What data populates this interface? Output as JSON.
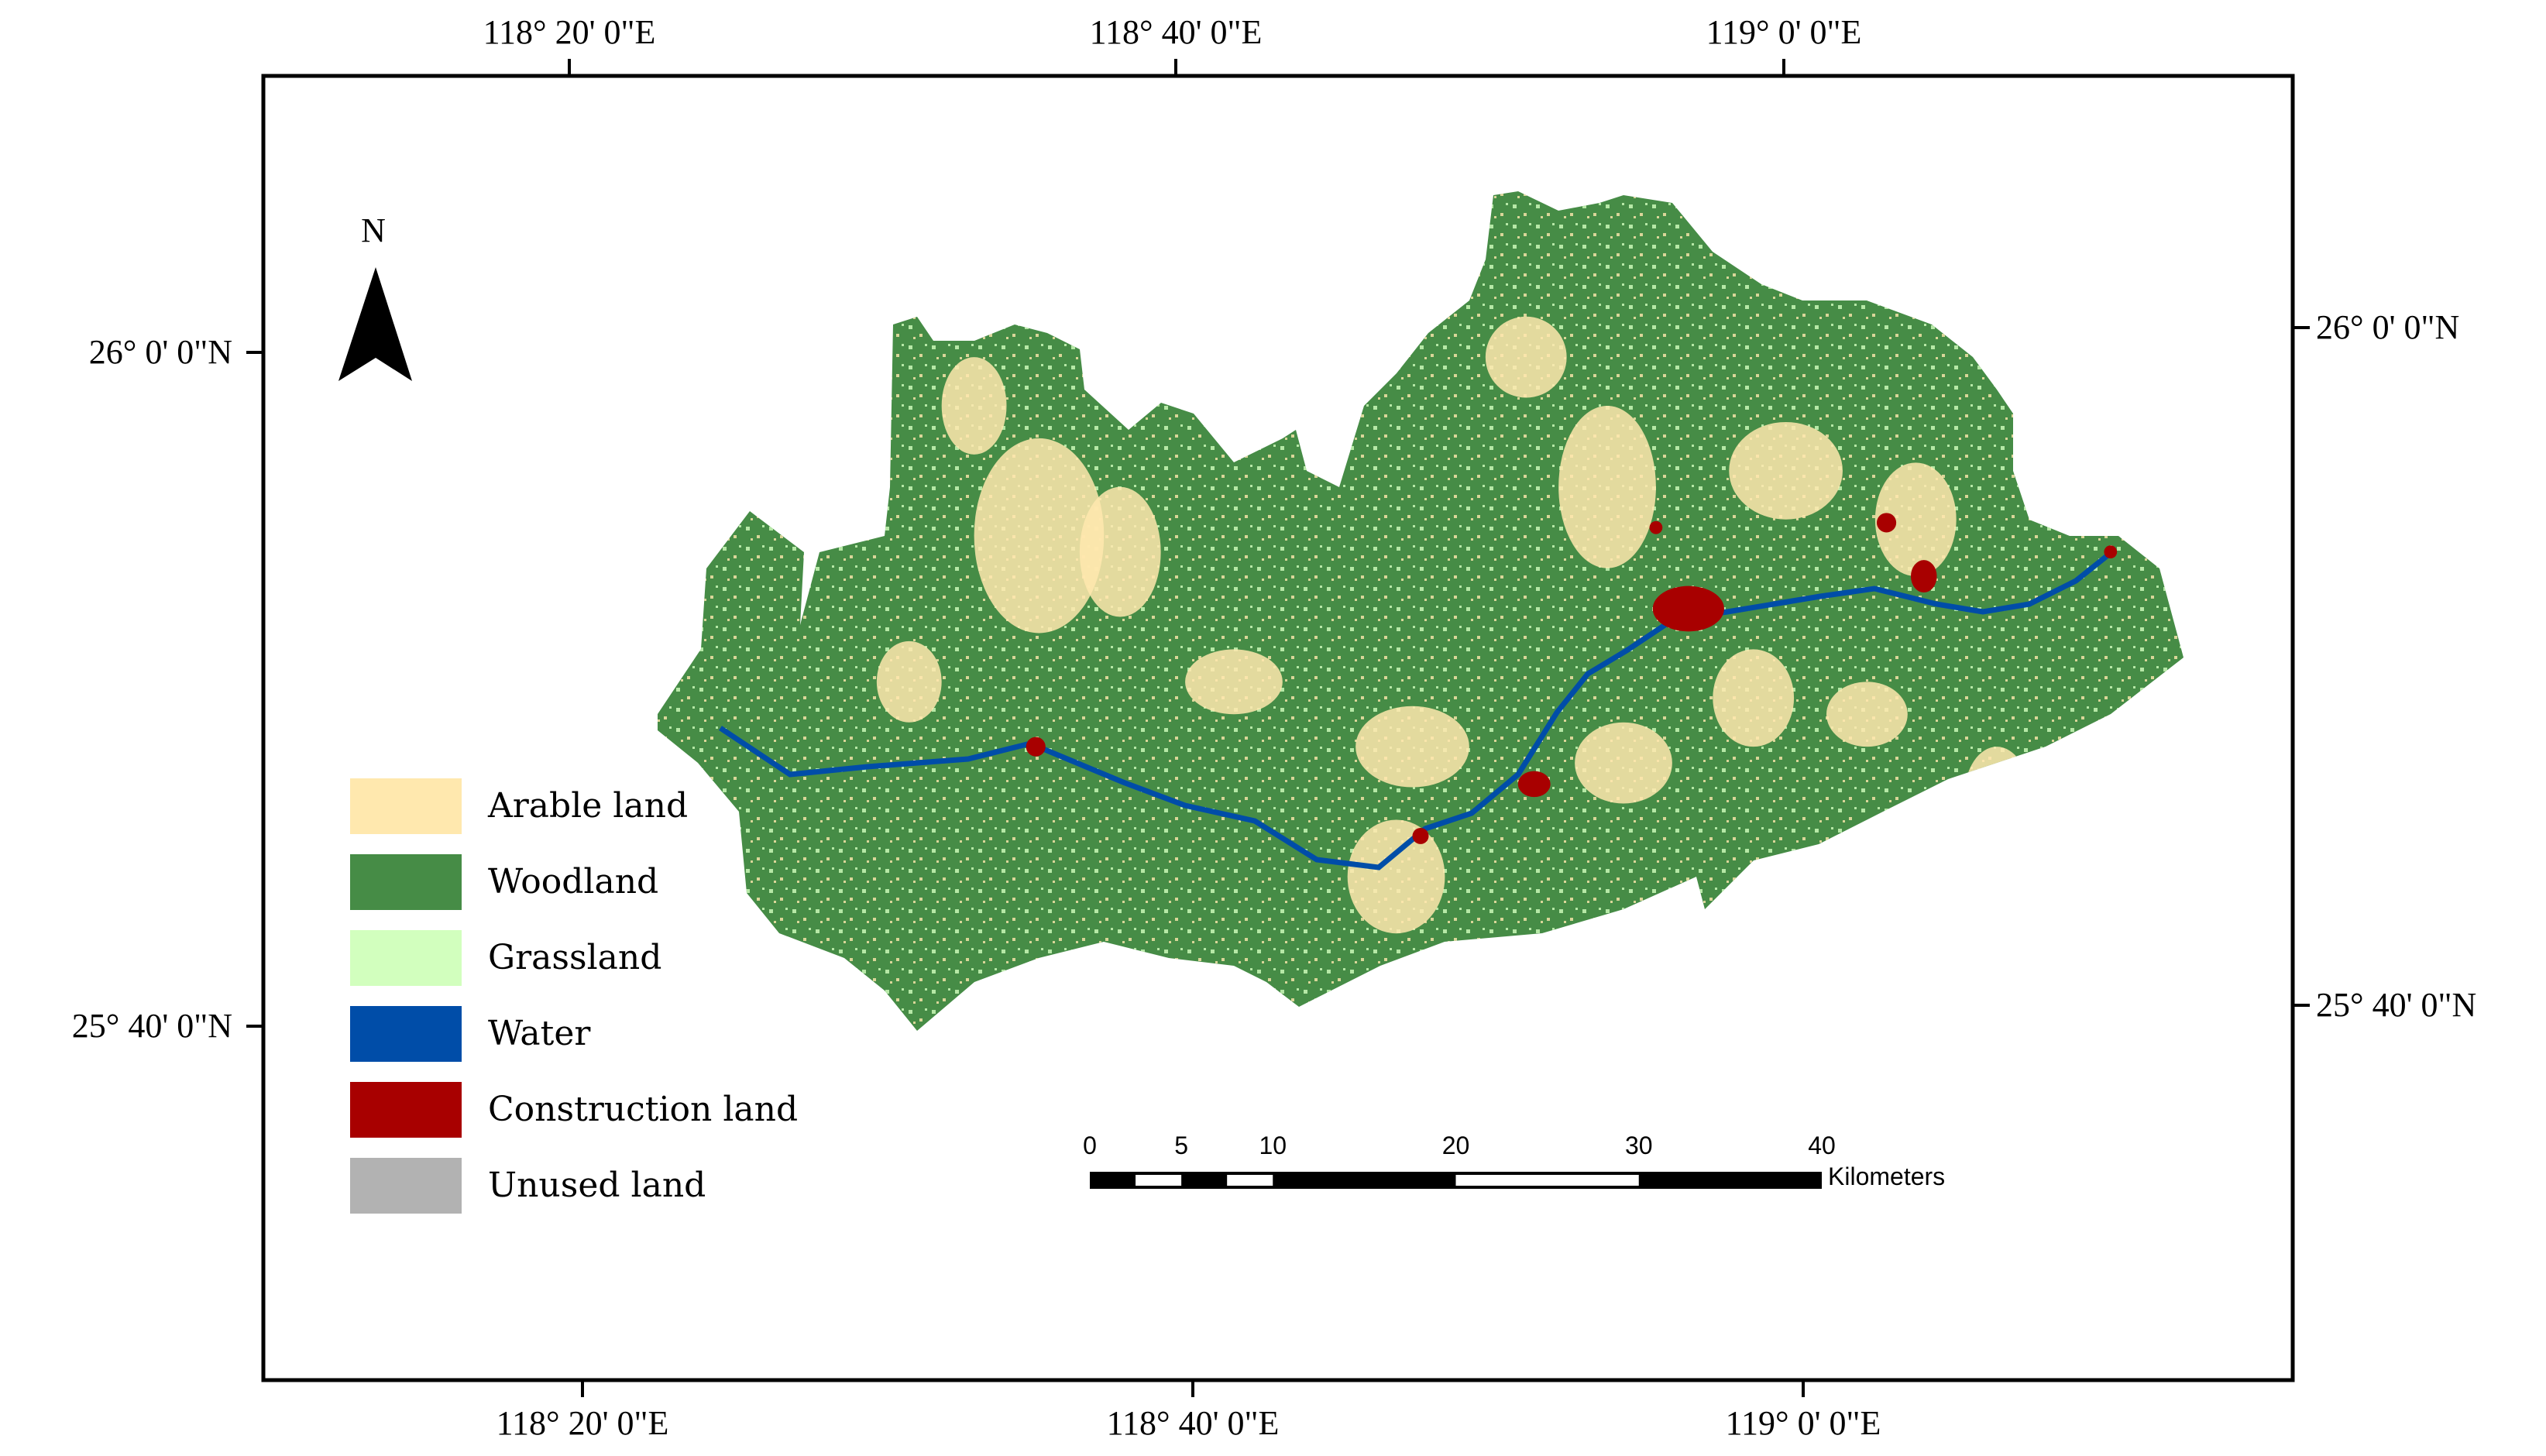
{
  "map": {
    "top_axis_labels": [
      "118° 20' 0\"E",
      "118° 40' 0\"E",
      "119° 0' 0\"E"
    ],
    "bottom_axis_labels": [
      "118° 20' 0\"E",
      "118° 40' 0\"E",
      "119° 0' 0\"E"
    ],
    "left_axis_labels": [
      "26° 0' 0\"N",
      "25° 40' 0\"N"
    ],
    "right_axis_labels": [
      "26° 0' 0\"N",
      "25° 40' 0\"N"
    ],
    "north_arrow": {
      "label": "N",
      "icon": "north-arrow-icon"
    },
    "legend": [
      {
        "label": "Arable land",
        "color": "#FFE8AE"
      },
      {
        "label": "Woodland",
        "color": "#468C46"
      },
      {
        "label": "Grassland",
        "color": "#D2FFBE"
      },
      {
        "label": "Water",
        "color": "#004DA8"
      },
      {
        "label": "Construction land",
        "color": "#A80000"
      },
      {
        "label": "Unused land",
        "color": "#B2B2B2"
      }
    ],
    "scale_bar": {
      "ticks": [
        "0",
        "5",
        "10",
        "20",
        "30",
        "40"
      ],
      "unit": "Kilometers"
    }
  }
}
